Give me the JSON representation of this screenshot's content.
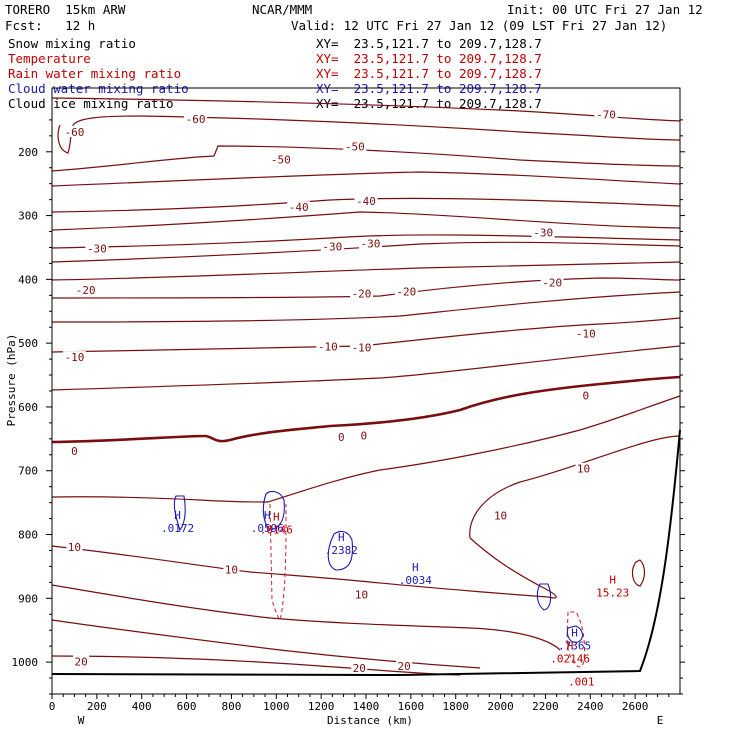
{
  "header": {
    "model": "TORERO  15km ARW",
    "org": "NCAR/MMM",
    "init": "Init: 00 UTC Fri 27 Jan 12",
    "fcst": "Fcst:   12 h",
    "valid": "Valid: 12 UTC Fri 27 Jan 12 (09 LST Fri 27 Jan 12)"
  },
  "fields": [
    {
      "name": "Snow mixing ratio",
      "xy": "XY=  23.5,121.7 to 209.7,128.7",
      "color": "#000000"
    },
    {
      "name": "Temperature",
      "xy": "XY=  23.5,121.7 to 209.7,128.7",
      "color": "#c00000"
    },
    {
      "name": "Rain water mixing ratio",
      "xy": "XY=  23.5,121.7 to 209.7,128.7",
      "color": "#c00000"
    },
    {
      "name": "Cloud water mixing ratio",
      "xy": "XY=  23.5,121.7 to 209.7,128.7",
      "color": "#1a1ab4"
    },
    {
      "name": "Cloud ice mixing ratio",
      "xy": "XY=  23.5,121.7 to 209.7,128.7",
      "color": "#000000"
    }
  ],
  "chart_data": {
    "type": "cross-section contour",
    "xlabel": "Distance (km)",
    "ylabel": "Pressure (hPa)",
    "xlim": [
      0,
      2800
    ],
    "ylim_hpa": [
      100,
      1050
    ],
    "x_ticks": [
      "0",
      "200",
      "400",
      "600",
      "800",
      "1000",
      "1200",
      "1400",
      "1600",
      "1800",
      "2000",
      "2200",
      "2400",
      "2600"
    ],
    "x_tick_values": [
      0,
      200,
      400,
      600,
      800,
      1000,
      1200,
      1400,
      1600,
      1800,
      2000,
      2200,
      2400,
      2600
    ],
    "y_ticks": [
      "200",
      "300",
      "400",
      "500",
      "600",
      "700",
      "800",
      "900",
      "1000"
    ],
    "y_tick_values": [
      200,
      300,
      400,
      500,
      600,
      700,
      800,
      900,
      1000
    ],
    "west_label": "W",
    "east_label": "E",
    "temperature_labels": [
      {
        "text": "-60",
        "x": 100,
        "p": 172
      },
      {
        "text": "-60",
        "x": 640,
        "p": 152
      },
      {
        "text": "-70",
        "x": 2470,
        "p": 145
      },
      {
        "text": "-50",
        "x": 1350,
        "p": 195
      },
      {
        "text": "-50",
        "x": 1020,
        "p": 215
      },
      {
        "text": "-40",
        "x": 1100,
        "p": 290
      },
      {
        "text": "-40",
        "x": 1400,
        "p": 280
      },
      {
        "text": "-30",
        "x": 200,
        "p": 355
      },
      {
        "text": "-30",
        "x": 1250,
        "p": 352
      },
      {
        "text": "-30",
        "x": 1420,
        "p": 347
      },
      {
        "text": "-30",
        "x": 2190,
        "p": 330
      },
      {
        "text": "-20",
        "x": 150,
        "p": 420
      },
      {
        "text": "-20",
        "x": 1380,
        "p": 425
      },
      {
        "text": "-20",
        "x": 1580,
        "p": 422
      },
      {
        "text": "-20",
        "x": 2230,
        "p": 408
      },
      {
        "text": "-10",
        "x": 100,
        "p": 525
      },
      {
        "text": "-10",
        "x": 1230,
        "p": 508
      },
      {
        "text": "-10",
        "x": 1380,
        "p": 510
      },
      {
        "text": "-10",
        "x": 2380,
        "p": 488
      },
      {
        "text": "0",
        "x": 100,
        "p": 672
      },
      {
        "text": "0",
        "x": 1290,
        "p": 650
      },
      {
        "text": "0",
        "x": 1390,
        "p": 648
      },
      {
        "text": "0",
        "x": 2380,
        "p": 585
      },
      {
        "text": "10",
        "x": 100,
        "p": 823
      },
      {
        "text": "10",
        "x": 800,
        "p": 858
      },
      {
        "text": "10",
        "x": 1380,
        "p": 897
      },
      {
        "text": "10",
        "x": 2000,
        "p": 773
      },
      {
        "text": "10",
        "x": 2370,
        "p": 700
      },
      {
        "text": "20",
        "x": 130,
        "p": 1002
      },
      {
        "text": "20",
        "x": 1370,
        "p": 1012
      },
      {
        "text": "20",
        "x": 1570,
        "p": 1009
      }
    ],
    "extrema": [
      {
        "symbol": "H",
        "value": ".0172",
        "x": 560,
        "p": 776,
        "color": "#1a1ab4"
      },
      {
        "symbol": "H",
        "value": ".0596",
        "x": 960,
        "p": 776,
        "color": "#1a1ab4"
      },
      {
        "symbol": "H",
        "value": ".0146",
        "x": 1000,
        "p": 778,
        "color": "#c00000"
      },
      {
        "symbol": "H",
        "value": ".2382",
        "x": 1290,
        "p": 810,
        "color": "#1a1ab4"
      },
      {
        "symbol": "H",
        "value": ".0034",
        "x": 1620,
        "p": 857,
        "color": "#1a1ab4"
      },
      {
        "symbol": "H",
        "value": ".7365",
        "x": 2330,
        "p": 960,
        "color": "#1a1ab4"
      },
      {
        "symbol": "H",
        "value": ".02146",
        "x": 2310,
        "p": 980,
        "color": "#c00000"
      },
      {
        "symbol": "H",
        "value": "15.23",
        "x": 2500,
        "p": 877,
        "color": "#c00000"
      },
      {
        "symbol": "",
        "value": ".001",
        "x": 2360,
        "p": 1016,
        "color": "#c00000"
      }
    ]
  }
}
